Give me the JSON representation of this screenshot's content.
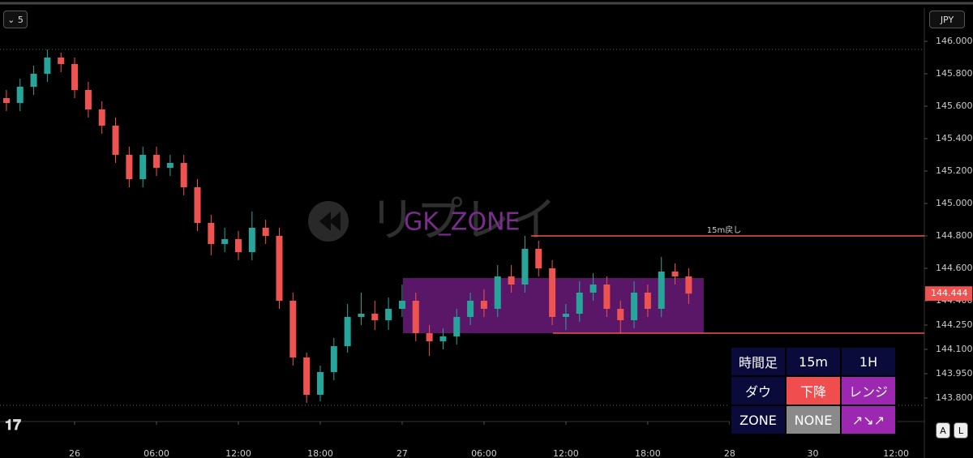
{
  "toolbar": {
    "interval": "5",
    "currency": "JPY"
  },
  "watermark": {
    "mode": "リプレイ",
    "title": "GK_ZONE"
  },
  "chart_data": {
    "type": "candlestick",
    "x": [
      -5,
      -4,
      -3,
      -2,
      -1,
      0,
      1,
      2,
      3,
      4,
      5,
      6,
      7,
      8,
      9,
      10,
      11,
      12,
      13,
      14,
      15,
      16,
      17,
      18,
      19,
      20,
      21,
      22,
      23,
      24,
      25,
      26,
      27,
      28,
      29,
      30,
      31,
      32,
      33,
      34,
      35,
      36,
      37,
      38,
      39,
      40,
      41,
      42,
      43,
      44,
      45
    ],
    "open": [
      145.65,
      145.62,
      145.72,
      145.8,
      145.9,
      145.86,
      145.7,
      145.58,
      145.48,
      145.3,
      145.15,
      145.3,
      145.22,
      145.25,
      145.1,
      144.88,
      144.75,
      144.78,
      144.7,
      144.85,
      144.8,
      144.4,
      144.05,
      143.82,
      143.96,
      144.12,
      144.3,
      144.32,
      144.28,
      144.35,
      144.4,
      144.2,
      144.15,
      144.18,
      144.3,
      144.4,
      144.35,
      144.55,
      144.5,
      144.72,
      144.6,
      144.3,
      144.32,
      144.45,
      144.5,
      144.35,
      144.28,
      144.45,
      144.35,
      144.58,
      144.55
    ],
    "high": [
      145.7,
      145.77,
      145.85,
      145.95,
      145.93,
      145.9,
      145.75,
      145.63,
      145.53,
      145.35,
      145.35,
      145.35,
      145.3,
      145.3,
      145.15,
      144.93,
      144.85,
      144.83,
      144.95,
      144.9,
      144.85,
      144.45,
      144.08,
      144.0,
      144.17,
      144.38,
      144.45,
      144.4,
      144.42,
      144.5,
      144.45,
      144.25,
      144.23,
      144.35,
      144.45,
      144.47,
      144.62,
      144.62,
      144.8,
      144.77,
      144.65,
      144.38,
      144.52,
      144.57,
      144.55,
      144.4,
      144.52,
      144.5,
      144.67,
      144.63,
      144.6
    ],
    "low": [
      145.57,
      145.57,
      145.67,
      145.75,
      145.81,
      145.65,
      145.53,
      145.43,
      145.25,
      145.1,
      145.1,
      145.17,
      145.17,
      145.05,
      144.83,
      144.68,
      144.7,
      144.65,
      144.65,
      144.75,
      144.35,
      144.0,
      143.77,
      143.78,
      143.91,
      144.08,
      144.25,
      144.22,
      144.22,
      144.3,
      144.15,
      144.06,
      144.1,
      144.13,
      144.25,
      144.3,
      144.3,
      144.45,
      144.45,
      144.55,
      144.25,
      144.22,
      144.27,
      144.4,
      144.3,
      144.2,
      144.23,
      144.3,
      144.3,
      144.5,
      144.38
    ],
    "close": [
      145.62,
      145.72,
      145.8,
      145.9,
      145.86,
      145.7,
      145.58,
      145.48,
      145.3,
      145.15,
      145.3,
      145.22,
      145.25,
      145.1,
      144.88,
      144.75,
      144.78,
      144.7,
      144.85,
      144.8,
      144.4,
      144.05,
      143.82,
      143.96,
      144.12,
      144.3,
      144.32,
      144.28,
      144.35,
      144.4,
      144.2,
      144.15,
      144.18,
      144.3,
      144.4,
      144.35,
      144.55,
      144.5,
      144.72,
      144.6,
      144.3,
      144.32,
      144.45,
      144.5,
      144.35,
      144.28,
      144.45,
      144.35,
      144.58,
      144.55,
      144.444
    ],
    "up_color": "#26a69a",
    "down_color": "#ef5350",
    "xlim": [
      -5.47,
      62.27
    ],
    "ylim": [
      143.655,
      146.205
    ],
    "xticks": [
      {
        "value": 0,
        "label": "26"
      },
      {
        "value": 6,
        "label": "06:00"
      },
      {
        "value": 12,
        "label": "12:00"
      },
      {
        "value": 18,
        "label": "18:00"
      },
      {
        "value": 24,
        "label": "27"
      },
      {
        "value": 30,
        "label": "06:00"
      },
      {
        "value": 36,
        "label": "12:00"
      },
      {
        "value": 42,
        "label": "18:00"
      },
      {
        "value": 48,
        "label": "28"
      },
      {
        "value": 54.1,
        "label": "30"
      },
      {
        "value": 60.2,
        "label": "12:00"
      }
    ],
    "yticks": [
      {
        "value": 146,
        "label": "146.000"
      },
      {
        "value": 145.8,
        "label": "145.800"
      },
      {
        "value": 145.6,
        "label": "145.600"
      },
      {
        "value": 145.4,
        "label": "145.400"
      },
      {
        "value": 145.2,
        "label": "145.200"
      },
      {
        "value": 145,
        "label": "145.000"
      },
      {
        "value": 144.8,
        "label": "144.800"
      },
      {
        "value": 144.6,
        "label": "144.600"
      },
      {
        "value": 144.4,
        "label": "144.400"
      },
      {
        "value": 144.25,
        "label": "144.250"
      },
      {
        "value": 144.1,
        "label": "144.100"
      },
      {
        "value": 143.95,
        "label": "143.950"
      },
      {
        "value": 143.8,
        "label": "143.800"
      }
    ],
    "last_price": 144.444,
    "zone": {
      "x": [
        24.06,
        46.1
      ],
      "y": [
        144.2,
        144.54
      ],
      "color": "#6a1b7a"
    },
    "levels": [
      {
        "value": 144.8,
        "x_start": 33.45,
        "label": "15m戻し",
        "color": "#ef5350"
      },
      {
        "value": 144.2,
        "x_start": 35.05,
        "color": "#ef5350"
      }
    ]
  },
  "table": {
    "rows": [
      [
        "時間足",
        "15m",
        "1H"
      ],
      [
        "ダウ",
        "下降",
        "レンジ"
      ],
      [
        "ZONE",
        "NONE",
        "↗↘↗"
      ]
    ]
  },
  "buttons": [
    "A",
    "L"
  ]
}
